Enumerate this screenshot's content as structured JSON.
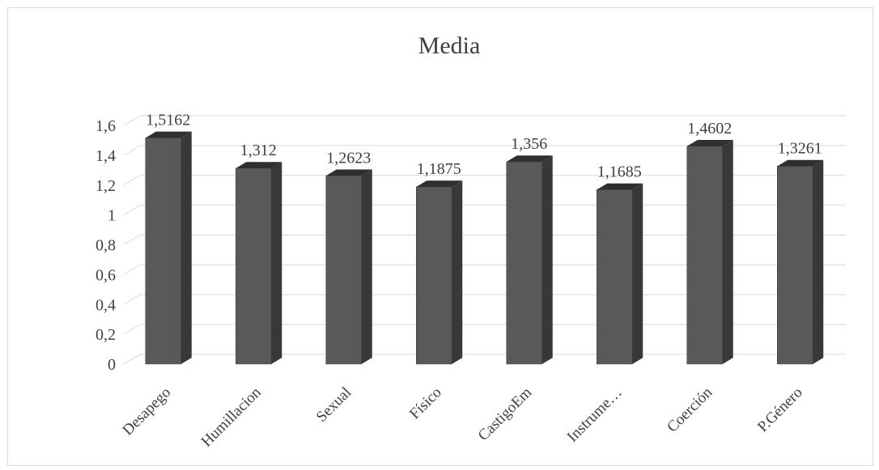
{
  "chart_data": {
    "type": "bar",
    "title": "Media",
    "categories": [
      "Desapego",
      "Humillacion",
      "Sexual",
      "Físico",
      "CastigoEm",
      "Instrume…",
      "Coerción",
      "P.Género"
    ],
    "series": [
      {
        "values": [
          1.5162,
          1.312,
          1.2623,
          1.1875,
          1.356,
          1.1685,
          1.4602,
          1.3261
        ],
        "labels": [
          "1,5162",
          "1,312",
          "1,2623",
          "1,1875",
          "1,356",
          "1,1685",
          "1,4602",
          "1,3261"
        ]
      }
    ],
    "yticks": [
      "0",
      "0,2",
      "0,4",
      "0,6",
      "0,8",
      "1",
      "1,2",
      "1,4",
      "1,6"
    ],
    "ylim": [
      0,
      1.6
    ],
    "grid": true,
    "legend": "none",
    "style": "3d-column",
    "colors": {
      "bar_front": "#595959",
      "bar_side": "#383838",
      "bar_top": "#2f2f2f",
      "grid": "#d9d9d9"
    }
  }
}
